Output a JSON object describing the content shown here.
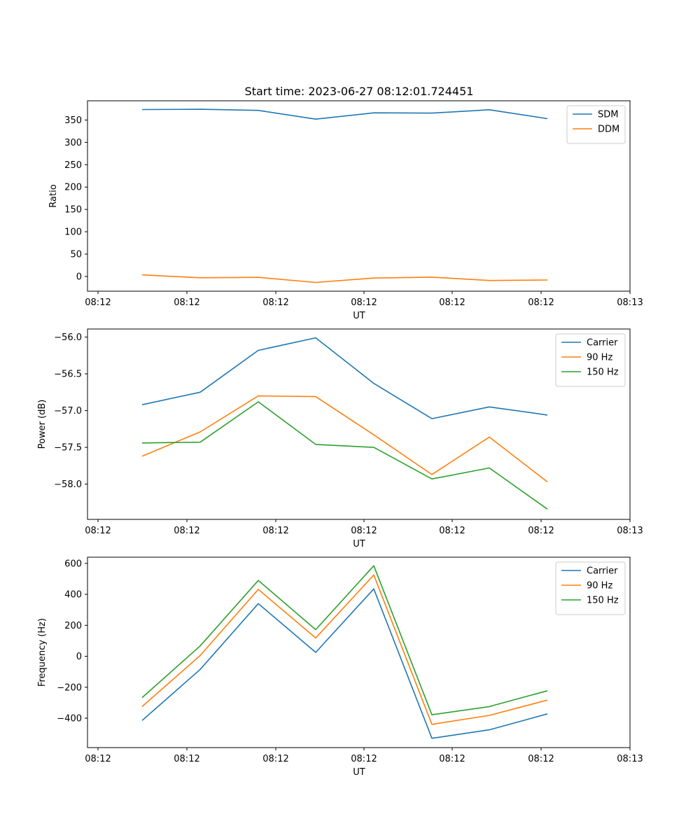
{
  "figure": {
    "title": "Start time: 2023-06-27 08:12:01.724451"
  },
  "chart_data": [
    {
      "type": "line",
      "xlabel": "UT",
      "ylabel": "Ratio",
      "x_tick_labels": [
        "08:12",
        "08:12",
        "08:12",
        "08:12",
        "08:12",
        "08:12",
        "08:13"
      ],
      "y_ticks": [
        0,
        50,
        100,
        150,
        200,
        250,
        300,
        350
      ],
      "ylim": [
        -33,
        393
      ],
      "legend_position": "upper right",
      "series": [
        {
          "name": "SDM",
          "color": "#1f77b4",
          "values": [
            373.5,
            374,
            371.5,
            352,
            366,
            365.5,
            373,
            353
          ]
        },
        {
          "name": "DDM",
          "color": "#ff7f0e",
          "values": [
            3.5,
            -3,
            -2,
            -13.5,
            -3.5,
            -1.5,
            -9,
            -8
          ]
        }
      ]
    },
    {
      "type": "line",
      "xlabel": "UT",
      "ylabel": "Power (dB)",
      "x_tick_labels": [
        "08:12",
        "08:12",
        "08:12",
        "08:12",
        "08:12",
        "08:12",
        "08:13"
      ],
      "y_ticks": [
        -58.0,
        -57.5,
        -57.0,
        -56.5,
        -56.0
      ],
      "y_tick_labels": [
        "−58.0",
        "−57.5",
        "−57.0",
        "−56.5",
        "−56.0"
      ],
      "ylim": [
        -58.48,
        -55.89
      ],
      "legend_position": "upper right",
      "series": [
        {
          "name": "Carrier",
          "color": "#1f77b4",
          "values": [
            -56.92,
            -56.75,
            -56.18,
            -56.01,
            -56.63,
            -57.11,
            -56.95,
            -57.06
          ]
        },
        {
          "name": "90 Hz",
          "color": "#ff7f0e",
          "values": [
            -57.62,
            -57.29,
            -56.8,
            -56.81,
            -57.33,
            -57.87,
            -57.36,
            -57.97
          ]
        },
        {
          "name": "150 Hz",
          "color": "#2ca02c",
          "values": [
            -57.44,
            -57.43,
            -56.88,
            -57.46,
            -57.5,
            -57.93,
            -57.78,
            -58.34
          ]
        }
      ]
    },
    {
      "type": "line",
      "xlabel": "UT",
      "ylabel": "Frequency (Hz)",
      "x_tick_labels": [
        "08:12",
        "08:12",
        "08:12",
        "08:12",
        "08:12",
        "08:12",
        "08:13"
      ],
      "y_ticks": [
        -400,
        -200,
        0,
        200,
        400,
        600
      ],
      "y_tick_labels": [
        "−400",
        "−200",
        "0",
        "200",
        "400",
        "600"
      ],
      "ylim": [
        -590,
        640
      ],
      "legend_position": "upper right",
      "series": [
        {
          "name": "Carrier",
          "color": "#1f77b4",
          "values": [
            -415,
            -85,
            340,
            25,
            435,
            -530,
            -475,
            -372
          ]
        },
        {
          "name": "90 Hz",
          "color": "#ff7f0e",
          "values": [
            -325,
            5,
            432,
            118,
            525,
            -440,
            -382,
            -283
          ]
        },
        {
          "name": "150 Hz",
          "color": "#2ca02c",
          "values": [
            -267,
            67,
            490,
            172,
            585,
            -378,
            -325,
            -223
          ]
        }
      ]
    }
  ]
}
